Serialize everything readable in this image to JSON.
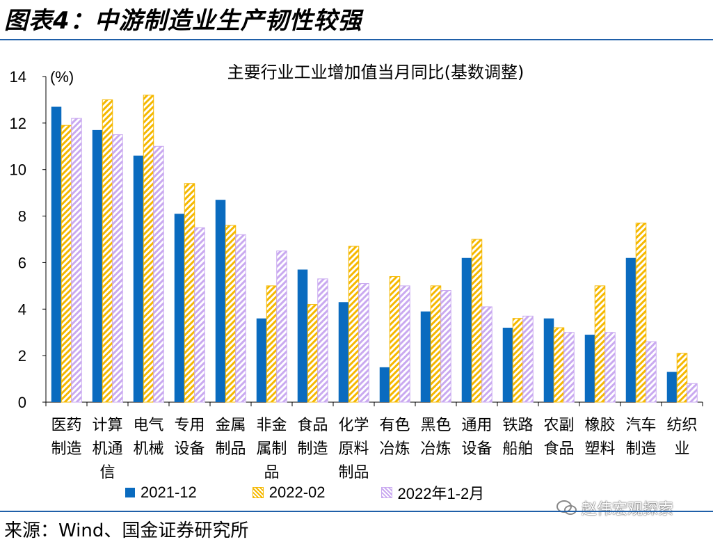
{
  "figure_title": "图表4：中游制造业生产韧性较强",
  "source_text": "来源：Wind、国金证券研究所",
  "watermark_text": "赵伟宏观探索",
  "colors": {
    "s1": "#0a6bbf",
    "s2": "#f5b800",
    "s3": "#c9a9f0",
    "rule": "#1f5fa8"
  },
  "chart_data": {
    "type": "bar",
    "title": "主要行业工业增加值当月同比(基数调整)",
    "ylabel": "(%)",
    "ylim": [
      0,
      14
    ],
    "yticks": [
      0,
      2,
      4,
      6,
      8,
      10,
      12,
      14
    ],
    "grid": false,
    "legend_position": "bottom",
    "categories": [
      [
        "医药",
        "制造"
      ],
      [
        "计算",
        "机通",
        "信"
      ],
      [
        "电气",
        "机械"
      ],
      [
        "专用",
        "设备"
      ],
      [
        "金属",
        "制品"
      ],
      [
        "非金",
        "属制",
        "品"
      ],
      [
        "食品",
        "制造"
      ],
      [
        "化学",
        "原料",
        "制品"
      ],
      [
        "有色",
        "冶炼"
      ],
      [
        "黑色",
        "冶炼"
      ],
      [
        "通用",
        "设备"
      ],
      [
        "铁路",
        "船舶"
      ],
      [
        "农副",
        "食品"
      ],
      [
        "橡胶",
        "塑料"
      ],
      [
        "汽车",
        "制造"
      ],
      [
        "纺织",
        "业"
      ]
    ],
    "series": [
      {
        "name": "2021-12",
        "values": [
          12.7,
          11.7,
          10.6,
          8.1,
          8.7,
          3.6,
          5.7,
          4.3,
          1.5,
          3.9,
          6.2,
          3.2,
          3.6,
          2.9,
          6.2,
          1.3
        ]
      },
      {
        "name": "2022-02",
        "values": [
          11.9,
          13.0,
          13.2,
          9.4,
          7.6,
          5.0,
          4.2,
          6.7,
          5.4,
          5.0,
          7.0,
          3.6,
          3.2,
          5.0,
          7.7,
          2.1
        ]
      },
      {
        "name": "2022年1-2月",
        "values": [
          12.2,
          11.5,
          11.0,
          7.5,
          7.2,
          6.5,
          5.3,
          5.1,
          5.0,
          4.8,
          4.1,
          3.7,
          3.0,
          3.0,
          2.6,
          0.8
        ]
      }
    ]
  }
}
